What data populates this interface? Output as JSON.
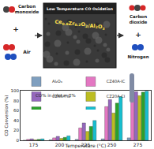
{
  "diagram": {
    "left_top": "Carbon monoxide",
    "left_bottom": "Air",
    "center_title": "Low Temperature CO Oxidation",
    "center_formula": "Ce0.8Zr0.2O2/Al2O3",
    "right_top": "Carbon dioxide",
    "right_bottom": "Nitrogen",
    "plus": "+"
  },
  "chart_data": {
    "type": "bar",
    "categories": [
      "175",
      "200",
      "225",
      "250",
      "275"
    ],
    "series": [
      {
        "name": "Al₂O₃",
        "color": "#7f9fbf",
        "values": [
          0,
          1,
          2,
          3,
          5
        ]
      },
      {
        "name": "CZ40A-IC",
        "color": "#e377c2",
        "values": [
          2,
          5,
          25,
          68,
          95
        ]
      },
      {
        "name": "CZ60A-IC",
        "color": "#9467bd",
        "values": [
          3,
          8,
          35,
          82,
          98
        ]
      },
      {
        "name": "CZ20A-CI",
        "color": "#bcbd22",
        "values": [
          1,
          4,
          18,
          55,
          90
        ]
      },
      {
        "name": "CZ40A-CI",
        "color": "#2ca02c",
        "values": [
          2,
          6,
          28,
          75,
          97
        ]
      },
      {
        "name": "CZ60A-CI",
        "color": "#17becf",
        "values": [
          3,
          9,
          40,
          88,
          99
        ]
      }
    ],
    "x_label": "Temperature (°C)",
    "y_label": "CO Conversion (%)",
    "ylim": [
      0,
      100
    ],
    "yticks": [
      0,
      20,
      40,
      60,
      80,
      100
    ],
    "annotations": [
      {
        "text": "CO% in inlet = 2%",
        "x": "175",
        "y": 90
      }
    ],
    "legend": "top",
    "grid": false
  }
}
